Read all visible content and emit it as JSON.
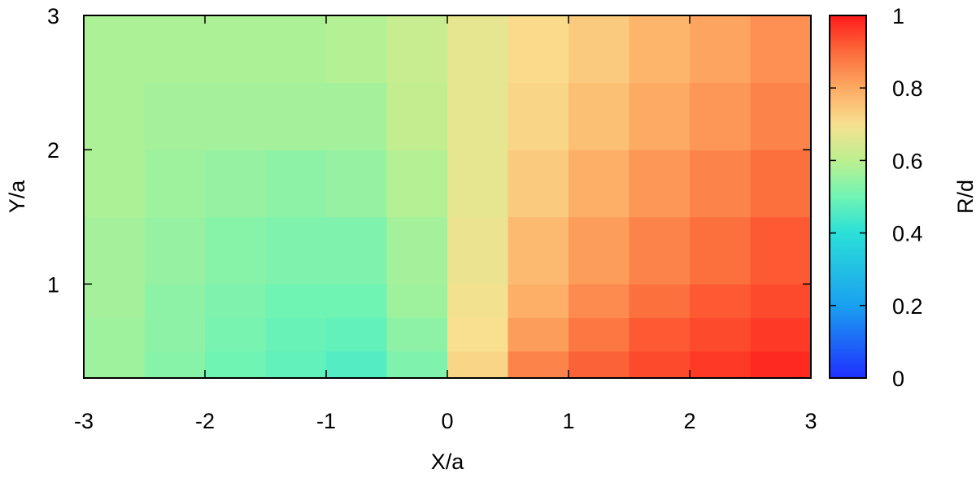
{
  "chart_data": {
    "type": "heatmap",
    "x_label": "X/a",
    "y_label": "Y/a",
    "colorbar_label": "R/d",
    "xbins": [
      -3,
      -2.5,
      -2,
      -1.5,
      -1,
      -0.5,
      0,
      0.5,
      1,
      1.5,
      2,
      2.5,
      3
    ],
    "ybins": [
      0.3,
      0.5,
      0.75,
      1,
      1.5,
      2,
      2.5,
      3
    ],
    "z": [
      [
        0.56,
        0.53,
        0.5,
        0.48,
        0.46,
        0.52,
        0.72,
        0.86,
        0.91,
        0.94,
        0.96,
        0.98
      ],
      [
        0.56,
        0.54,
        0.51,
        0.49,
        0.48,
        0.54,
        0.7,
        0.82,
        0.88,
        0.92,
        0.94,
        0.96
      ],
      [
        0.57,
        0.54,
        0.52,
        0.5,
        0.5,
        0.56,
        0.69,
        0.79,
        0.85,
        0.89,
        0.92,
        0.94
      ],
      [
        0.57,
        0.55,
        0.53,
        0.52,
        0.52,
        0.57,
        0.68,
        0.77,
        0.82,
        0.86,
        0.89,
        0.92
      ],
      [
        0.58,
        0.56,
        0.55,
        0.54,
        0.55,
        0.59,
        0.67,
        0.74,
        0.79,
        0.83,
        0.86,
        0.89
      ],
      [
        0.58,
        0.57,
        0.57,
        0.57,
        0.57,
        0.61,
        0.67,
        0.72,
        0.76,
        0.8,
        0.83,
        0.86
      ],
      [
        0.58,
        0.58,
        0.58,
        0.58,
        0.59,
        0.62,
        0.67,
        0.71,
        0.74,
        0.78,
        0.81,
        0.84
      ]
    ],
    "xlim": [
      -3,
      3
    ],
    "ylim": [
      0.3,
      3
    ],
    "zlim": [
      0,
      1
    ],
    "xticks": [
      -3,
      -2,
      -1,
      0,
      1,
      2,
      3
    ],
    "yticks": [
      1,
      2,
      3
    ],
    "zticks": [
      0,
      0.2,
      0.4,
      0.6,
      0.8,
      1
    ],
    "colorscale": [
      [
        0,
        "#2030ff"
      ],
      [
        0.2,
        "#1aa0f0"
      ],
      [
        0.4,
        "#2ae0d8"
      ],
      [
        0.5,
        "#70f4b4"
      ],
      [
        0.6,
        "#bcf090"
      ],
      [
        0.7,
        "#f8e090"
      ],
      [
        0.8,
        "#fdaa62"
      ],
      [
        0.9,
        "#fc6a3a"
      ],
      [
        1,
        "#ff1a1a"
      ]
    ]
  }
}
